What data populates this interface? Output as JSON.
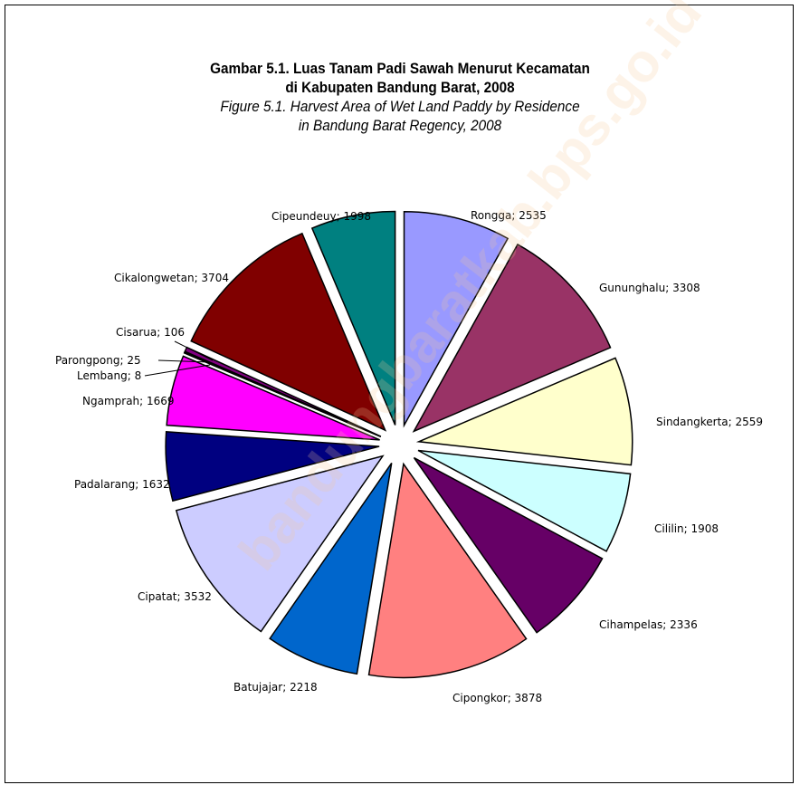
{
  "chart_data": {
    "type": "pie",
    "title": "Gambar 5.1. Luas Tanam Padi Sawah Menurut Kecamatan",
    "title_line2": "di Kabupaten Bandung Barat, 2008",
    "subtitle": "Figure 5.1. Harvest Area of Wet Land Paddy by Residence",
    "subtitle_line2": "in Bandung Barat Regency, 2008",
    "exploded": true,
    "slices": [
      {
        "name": "Rongga",
        "value": 2535,
        "label": "Rongga; 2535",
        "color": "#9999ff"
      },
      {
        "name": "Gununghalu",
        "value": 3308,
        "label": "Gununghalu; 3308",
        "color": "#993366"
      },
      {
        "name": "Sindangkerta",
        "value": 2559,
        "label": "Sindangkerta; 2559",
        "color": "#ffffcc"
      },
      {
        "name": "Cililin",
        "value": 1908,
        "label": "Cililin; 1908",
        "color": "#ccffff"
      },
      {
        "name": "Cihampelas",
        "value": 2336,
        "label": "Cihampelas; 2336",
        "color": "#660066"
      },
      {
        "name": "Cipongkor",
        "value": 3878,
        "label": "Cipongkor; 3878",
        "color": "#ff8080"
      },
      {
        "name": "Batujajar",
        "value": 2218,
        "label": "Batujajar; 2218",
        "color": "#0066cc"
      },
      {
        "name": "Cipatat",
        "value": 3532,
        "label": "Cipatat; 3532",
        "color": "#ccccff"
      },
      {
        "name": "Padalarang",
        "value": 1632,
        "label": "Padalarang; 1632",
        "color": "#000080"
      },
      {
        "name": "Ngamprah",
        "value": 1669,
        "label": "Ngamprah; 1669",
        "color": "#ff00ff"
      },
      {
        "name": "Lembang",
        "value": 8,
        "label": "Lembang; 8",
        "color": "#ffff00"
      },
      {
        "name": "Parongpong",
        "value": 25,
        "label": "Parongpong; 25",
        "color": "#00ffff"
      },
      {
        "name": "Cisarua",
        "value": 106,
        "label": "Cisarua; 106",
        "color": "#800080"
      },
      {
        "name": "Cikalongwetan",
        "value": 3704,
        "label": "Cikalongwetan; 3704",
        "color": "#800000"
      },
      {
        "name": "Cipeundeuy",
        "value": 1998,
        "label": "Cipeundeuy; 1998",
        "color": "#008080"
      }
    ]
  },
  "watermark": "bandungbaratkab.bps.go.id"
}
